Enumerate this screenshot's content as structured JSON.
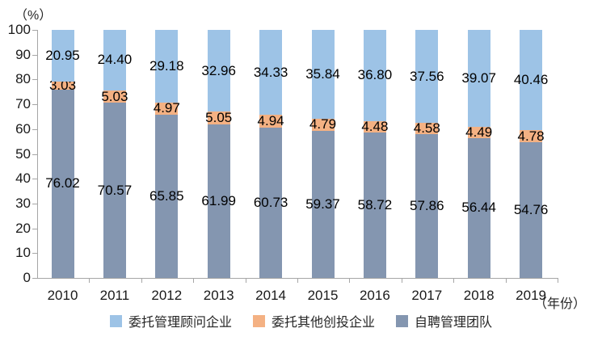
{
  "chart_data": {
    "type": "bar",
    "stacked": true,
    "title": "",
    "categories": [
      "2010",
      "2011",
      "2012",
      "2013",
      "2014",
      "2015",
      "2016",
      "2017",
      "2018",
      "2019"
    ],
    "series": [
      {
        "name": "自聘管理团队",
        "color": "#8496B0",
        "values": [
          76.02,
          70.57,
          65.85,
          61.99,
          60.73,
          59.37,
          58.72,
          57.86,
          56.44,
          54.76
        ]
      },
      {
        "name": "委托其他创投企业",
        "color": "#F4B183",
        "values": [
          3.03,
          5.03,
          4.97,
          5.05,
          4.94,
          4.79,
          4.48,
          4.58,
          4.49,
          4.78
        ]
      },
      {
        "name": "委托管理顾问企业",
        "color": "#9DC3E6",
        "values": [
          20.95,
          24.4,
          29.18,
          32.96,
          34.33,
          35.84,
          36.8,
          37.56,
          39.07,
          40.46
        ]
      }
    ],
    "legend": [
      {
        "label": "委托管理顾问企业",
        "color": "#9DC3E6"
      },
      {
        "label": "委托其他创投企业",
        "color": "#F4B183"
      },
      {
        "label": "自聘管理团队",
        "color": "#8496B0"
      }
    ],
    "legend_position": "bottom",
    "grid": false,
    "y_axis": {
      "label": "（%）",
      "min": 0,
      "max": 100,
      "step": 10,
      "ticks": [
        "0",
        "10",
        "20",
        "30",
        "40",
        "50",
        "60",
        "70",
        "80",
        "90",
        "100"
      ]
    },
    "x_axis": {
      "label": "（年份）"
    },
    "colors": {
      "axis": "#A6A6A6",
      "label_text": "#000000",
      "background": "#FFFFFF"
    }
  }
}
